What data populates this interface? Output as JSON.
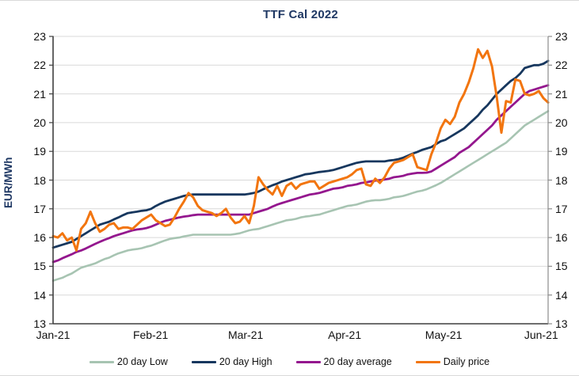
{
  "chart_data": {
    "type": "line",
    "title": "TTF Cal 2022",
    "ylabel": "EUR/MWh",
    "xlabel": "",
    "ylim": [
      13,
      23
    ],
    "y_ticks": [
      13,
      14,
      15,
      16,
      17,
      18,
      19,
      20,
      21,
      22,
      23
    ],
    "x_ticks": [
      {
        "label": "Jan-21",
        "f": 0.0
      },
      {
        "label": "Feb-21",
        "f": 0.197
      },
      {
        "label": "Mar-21",
        "f": 0.389
      },
      {
        "label": "Apr-21",
        "f": 0.589
      },
      {
        "label": "May-21",
        "f": 0.789
      },
      {
        "label": "Jun-21",
        "f": 0.986
      }
    ],
    "grid": true,
    "grid_color": "#d9d9d9",
    "legend_position": "bottom",
    "axis_color_left": "#3f3f3f",
    "axis_color_right": "#8c8c8c",
    "series": [
      {
        "name": "20 day Low",
        "color": "#a7c4b2",
        "width": 2.6,
        "values": [
          14.5,
          14.55,
          14.6,
          14.68,
          14.75,
          14.85,
          14.95,
          15.0,
          15.05,
          15.1,
          15.18,
          15.25,
          15.3,
          15.38,
          15.45,
          15.5,
          15.55,
          15.58,
          15.6,
          15.63,
          15.68,
          15.72,
          15.78,
          15.84,
          15.9,
          15.95,
          15.98,
          16.0,
          16.04,
          16.07,
          16.1,
          16.1,
          16.1,
          16.1,
          16.1,
          16.1,
          16.1,
          16.1,
          16.1,
          16.12,
          16.15,
          16.2,
          16.25,
          16.28,
          16.3,
          16.35,
          16.4,
          16.45,
          16.5,
          16.55,
          16.6,
          16.62,
          16.65,
          16.7,
          16.73,
          16.75,
          16.78,
          16.8,
          16.85,
          16.9,
          16.95,
          17.0,
          17.05,
          17.1,
          17.12,
          17.15,
          17.2,
          17.25,
          17.28,
          17.3,
          17.3,
          17.32,
          17.35,
          17.4,
          17.42,
          17.45,
          17.5,
          17.55,
          17.6,
          17.63,
          17.68,
          17.75,
          17.82,
          17.9,
          18.0,
          18.1,
          18.2,
          18.3,
          18.4,
          18.5,
          18.6,
          18.7,
          18.8,
          18.9,
          19.0,
          19.1,
          19.2,
          19.3,
          19.45,
          19.6,
          19.75,
          19.9,
          20.0,
          20.1,
          20.2,
          20.3,
          20.4
        ]
      },
      {
        "name": "20 day High",
        "color": "#17375e",
        "width": 2.8,
        "values": [
          15.65,
          15.7,
          15.75,
          15.8,
          15.85,
          15.95,
          16.05,
          16.15,
          16.25,
          16.35,
          16.45,
          16.5,
          16.55,
          16.63,
          16.7,
          16.78,
          16.85,
          16.88,
          16.9,
          16.93,
          16.95,
          17.0,
          17.1,
          17.18,
          17.25,
          17.3,
          17.35,
          17.4,
          17.45,
          17.48,
          17.5,
          17.5,
          17.5,
          17.5,
          17.5,
          17.5,
          17.5,
          17.5,
          17.5,
          17.5,
          17.5,
          17.5,
          17.52,
          17.55,
          17.6,
          17.68,
          17.75,
          17.82,
          17.88,
          17.95,
          18.0,
          18.05,
          18.1,
          18.15,
          18.2,
          18.22,
          18.25,
          18.28,
          18.3,
          18.32,
          18.35,
          18.4,
          18.45,
          18.5,
          18.55,
          18.6,
          18.63,
          18.65,
          18.65,
          18.65,
          18.65,
          18.65,
          18.68,
          18.7,
          18.73,
          18.78,
          18.85,
          18.92,
          18.98,
          19.05,
          19.1,
          19.15,
          19.25,
          19.35,
          19.4,
          19.5,
          19.6,
          19.7,
          19.8,
          19.95,
          20.1,
          20.25,
          20.45,
          20.6,
          20.8,
          21.0,
          21.15,
          21.3,
          21.45,
          21.55,
          21.7,
          21.9,
          21.95,
          22.0,
          22.0,
          22.05,
          22.15
        ]
      },
      {
        "name": "20 day average",
        "color": "#94178e",
        "width": 2.8,
        "values": [
          15.15,
          15.2,
          15.28,
          15.35,
          15.42,
          15.5,
          15.55,
          15.62,
          15.7,
          15.78,
          15.85,
          15.92,
          15.98,
          16.05,
          16.1,
          16.15,
          16.2,
          16.25,
          16.28,
          16.3,
          16.33,
          16.38,
          16.45,
          16.52,
          16.58,
          16.62,
          16.66,
          16.7,
          16.73,
          16.75,
          16.78,
          16.8,
          16.8,
          16.8,
          16.8,
          16.8,
          16.8,
          16.8,
          16.8,
          16.8,
          16.8,
          16.8,
          16.8,
          16.85,
          16.9,
          16.95,
          17.0,
          17.08,
          17.15,
          17.2,
          17.25,
          17.3,
          17.35,
          17.4,
          17.45,
          17.5,
          17.52,
          17.55,
          17.6,
          17.65,
          17.7,
          17.72,
          17.75,
          17.8,
          17.82,
          17.85,
          17.9,
          17.92,
          17.95,
          17.98,
          18.0,
          18.02,
          18.05,
          18.1,
          18.12,
          18.15,
          18.2,
          18.23,
          18.25,
          18.25,
          18.26,
          18.3,
          18.4,
          18.5,
          18.6,
          18.7,
          18.8,
          18.95,
          19.05,
          19.15,
          19.3,
          19.45,
          19.6,
          19.75,
          19.9,
          20.1,
          20.25,
          20.4,
          20.55,
          20.7,
          20.85,
          21.0,
          21.1,
          21.15,
          21.2,
          21.25,
          21.3
        ]
      },
      {
        "name": "Daily price",
        "color": "#f2750f",
        "width": 3.0,
        "values": [
          16.05,
          16.0,
          16.15,
          15.9,
          16.0,
          15.55,
          16.3,
          16.5,
          16.9,
          16.5,
          16.2,
          16.3,
          16.45,
          16.5,
          16.3,
          16.35,
          16.35,
          16.3,
          16.45,
          16.6,
          16.7,
          16.8,
          16.6,
          16.5,
          16.4,
          16.45,
          16.7,
          17.0,
          17.25,
          17.55,
          17.4,
          17.1,
          16.95,
          16.9,
          16.85,
          16.75,
          16.85,
          17.0,
          16.7,
          16.5,
          16.55,
          16.75,
          16.5,
          17.1,
          18.1,
          17.85,
          17.65,
          17.5,
          17.8,
          17.45,
          17.8,
          17.9,
          17.7,
          17.85,
          17.9,
          17.95,
          17.95,
          17.7,
          17.8,
          17.9,
          17.95,
          18.0,
          18.05,
          18.1,
          18.2,
          18.35,
          18.4,
          17.85,
          17.8,
          18.05,
          17.9,
          18.1,
          18.4,
          18.6,
          18.65,
          18.7,
          18.8,
          18.9,
          18.45,
          18.4,
          18.35,
          18.9,
          19.3,
          19.8,
          20.1,
          19.95,
          20.2,
          20.7,
          21.0,
          21.4,
          21.9,
          22.55,
          22.25,
          22.5,
          21.95,
          20.9,
          19.65,
          20.75,
          20.7,
          21.5,
          21.45,
          21.0,
          20.95,
          21.0,
          21.1,
          20.85,
          20.7
        ]
      }
    ]
  }
}
